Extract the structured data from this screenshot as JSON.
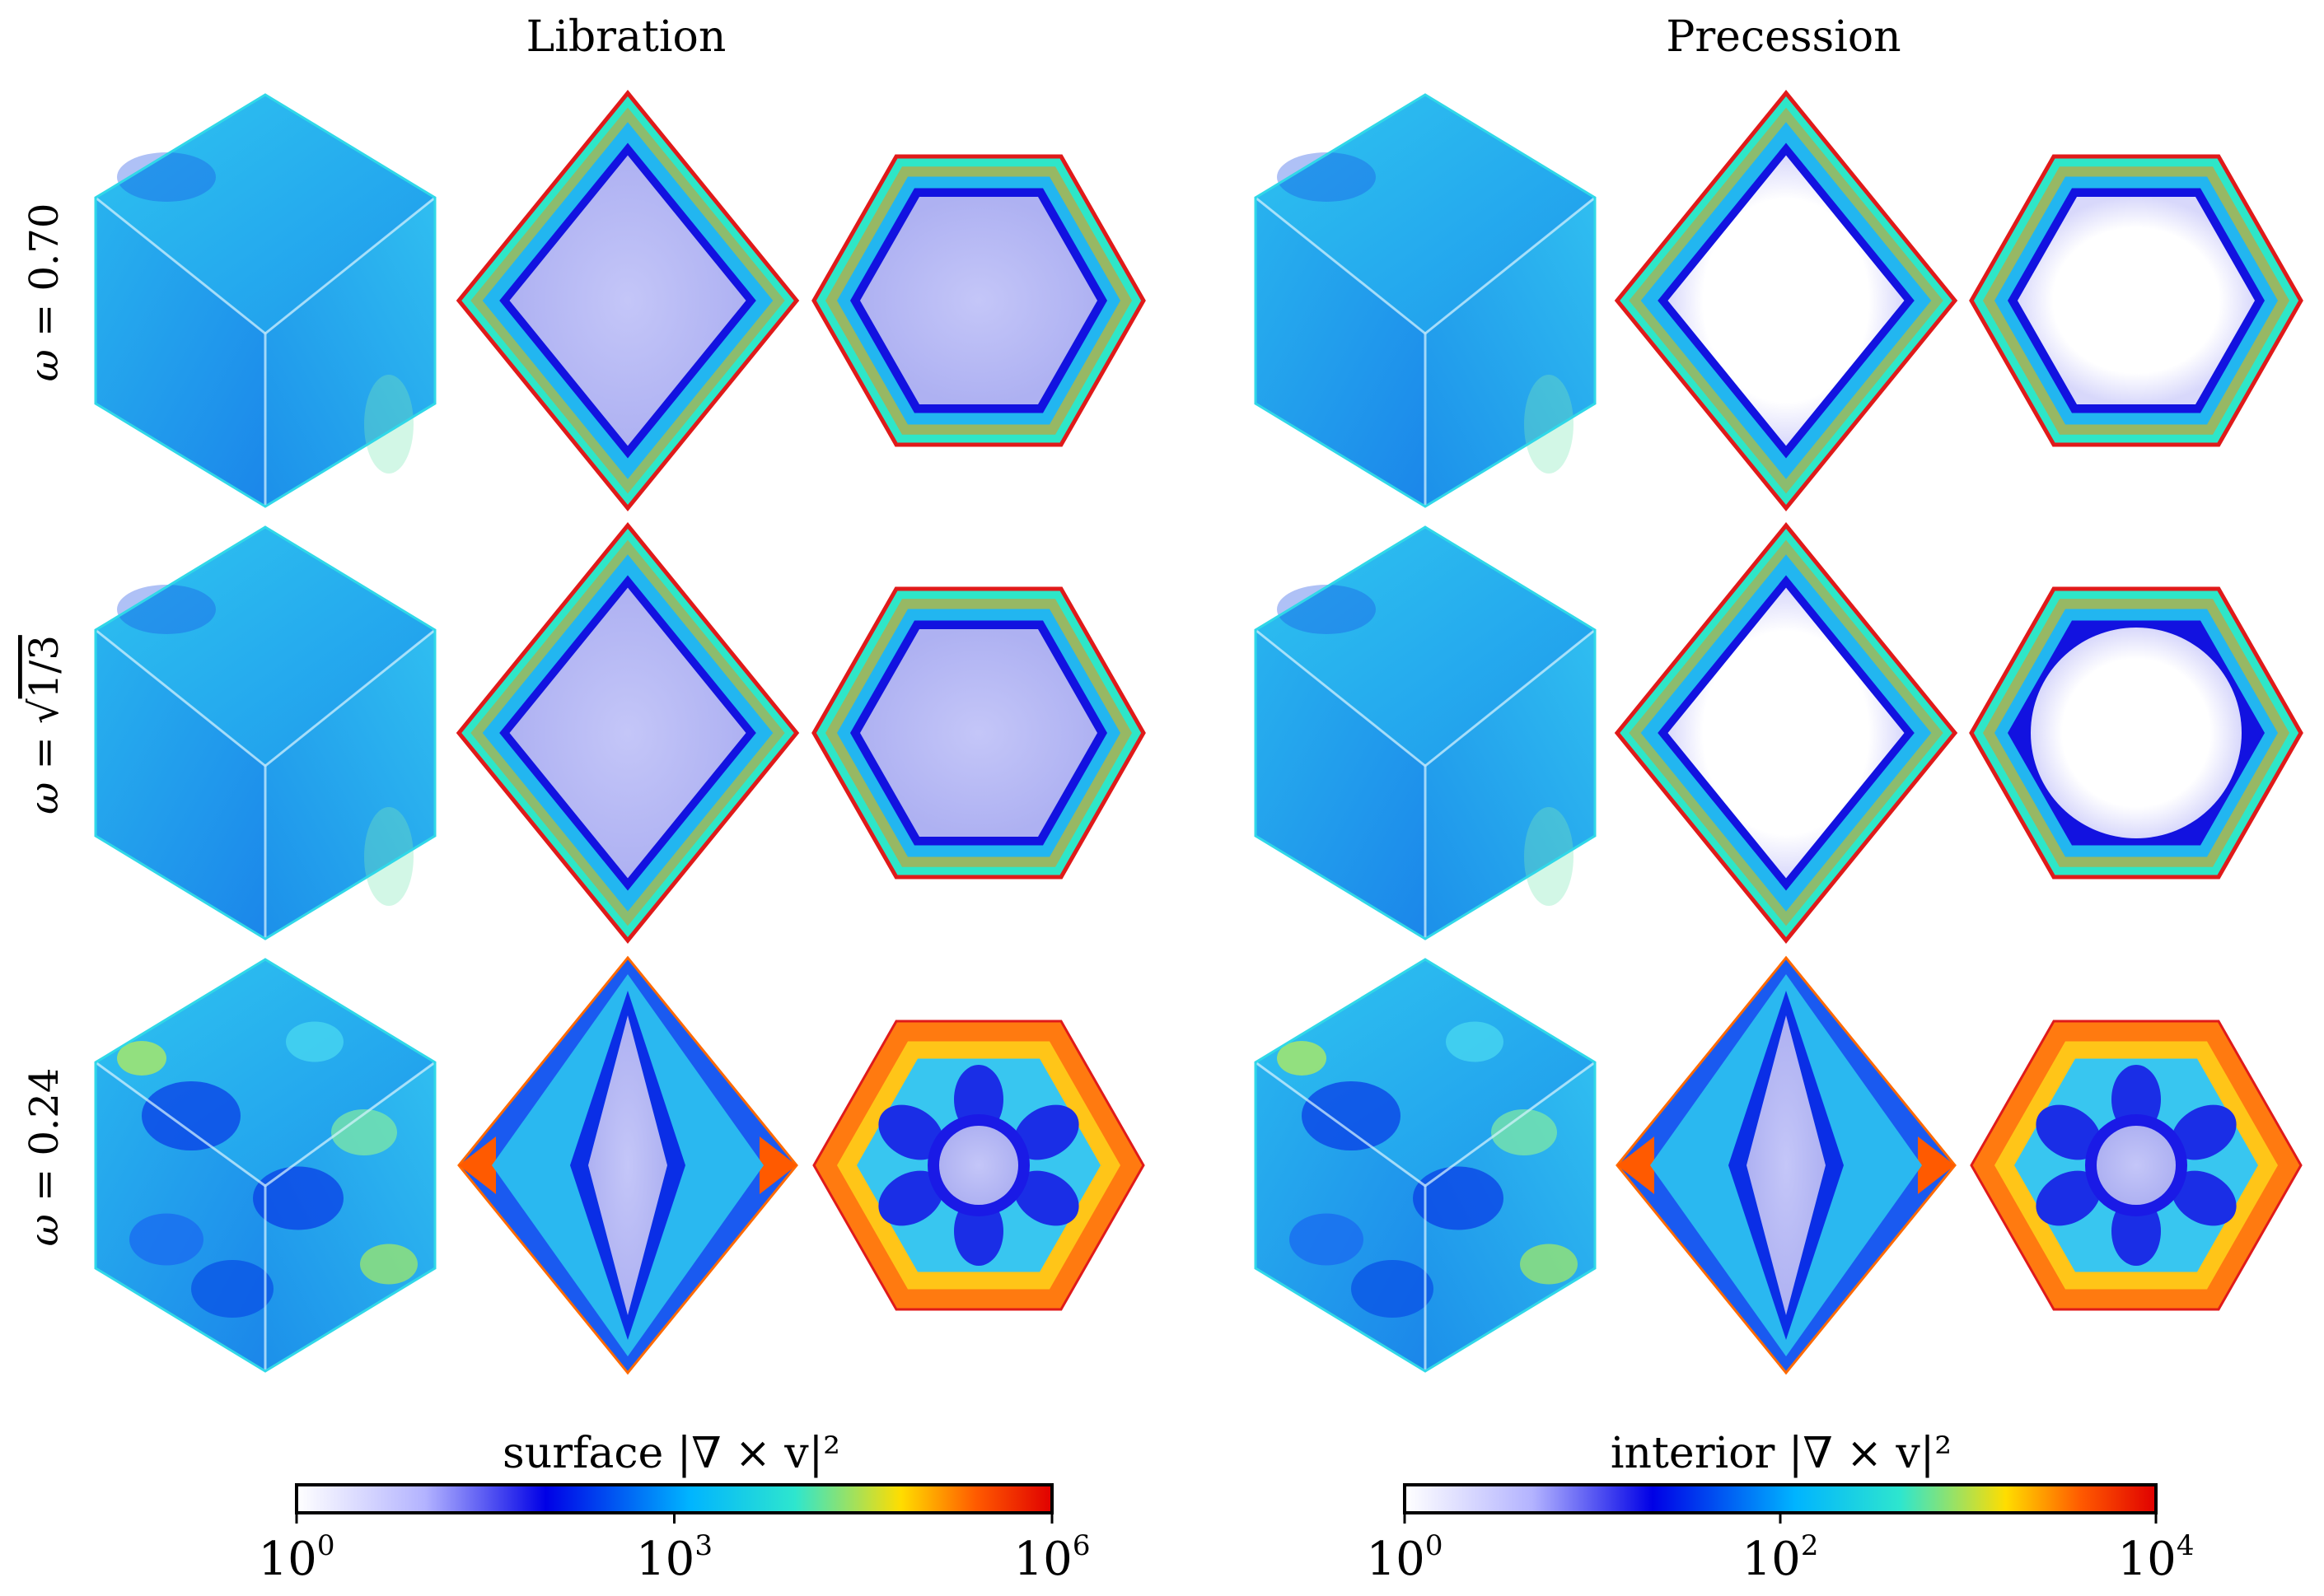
{
  "panels": {
    "left_title": "Libration",
    "right_title": "Precession"
  },
  "rows": [
    {
      "label_prefix": "ω = ",
      "label_value": "0.70"
    },
    {
      "label_prefix": "ω = ",
      "label_value": "1/3",
      "label_has_sqrt": true
    },
    {
      "label_prefix": "ω = ",
      "label_value": "0.24"
    }
  ],
  "colorbars": {
    "surface": {
      "label": "surface |∇ × v|²",
      "colormap": [
        "#ffffff",
        "#b3b3ff",
        "#0000e6",
        "#00b4ff",
        "#2ee6ce",
        "#ffdd00",
        "#ff5a00",
        "#e00000"
      ],
      "tick_bases": [
        "10",
        "10",
        "10"
      ],
      "tick_exponents": [
        "0",
        "3",
        "6"
      ]
    },
    "interior": {
      "label": "interior |∇ × v|²",
      "colormap": [
        "#ffffff",
        "#b3b3ff",
        "#0000e6",
        "#00b4ff",
        "#2ee6ce",
        "#ffdd00",
        "#ff5a00",
        "#e00000"
      ],
      "tick_bases": [
        "10",
        "10",
        "10"
      ],
      "tick_exponents": [
        "0",
        "2",
        "4"
      ]
    }
  },
  "colors": {
    "cube_base": "#2fb8ee",
    "interior_bg": "#b8baf5",
    "interior_white": "#ffffff",
    "ring_blue": "#1a1ae6",
    "cyan": "#2ee6d6",
    "red": "#e41a1a",
    "orange": "#ff8a00"
  }
}
